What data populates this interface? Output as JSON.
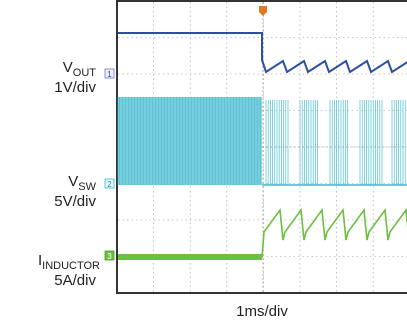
{
  "labels": {
    "vout": {
      "main": "V",
      "sub": "OUT",
      "scale": "1V/div"
    },
    "vsw": {
      "main": "V",
      "sub": "SW",
      "scale": "5V/div"
    },
    "inductor": {
      "main": "I",
      "sub": "INDUCTOR",
      "scale": "5A/div"
    }
  },
  "channels": [
    "1",
    "2",
    "3"
  ],
  "time_scale": "1ms/div"
}
